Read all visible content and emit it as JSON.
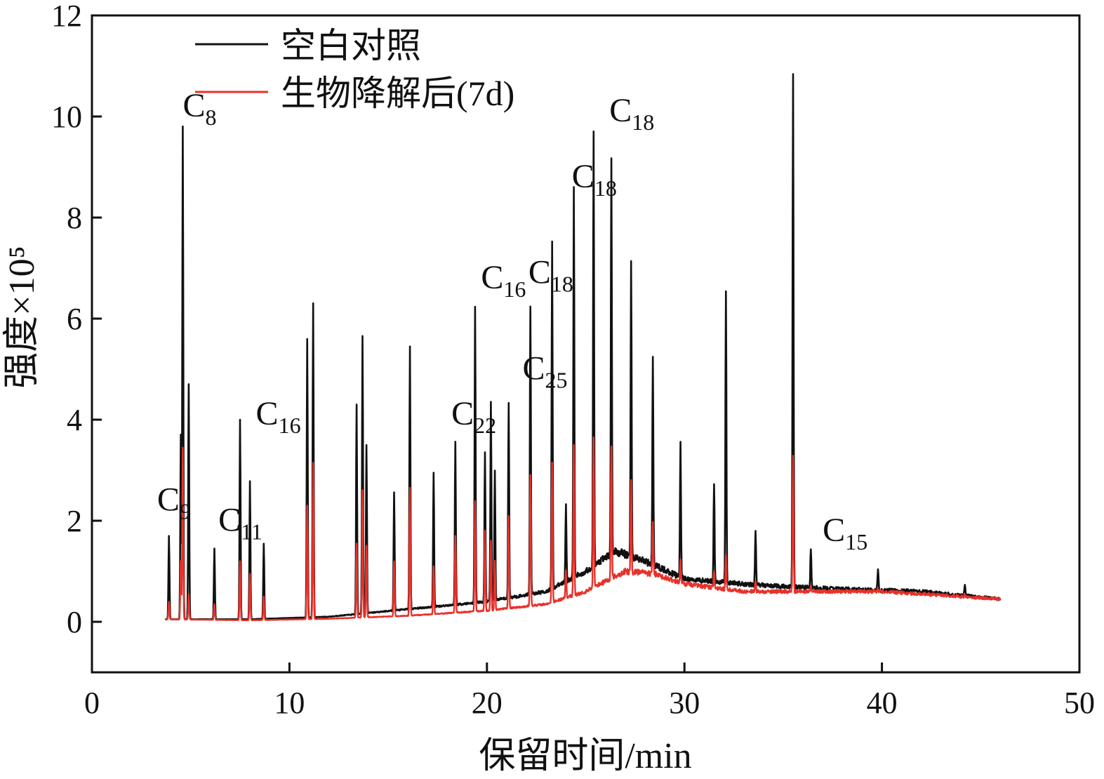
{
  "chart_data": {
    "type": "line",
    "xlabel": "保留时间/min",
    "ylabel": "强度×10⁵",
    "xlim": [
      0,
      50
    ],
    "ylim": [
      -1,
      12
    ],
    "xticks": [
      "0",
      "10",
      "20",
      "30",
      "40",
      "50"
    ],
    "yticks": [
      "0",
      "2",
      "4",
      "6",
      "8",
      "10",
      "12"
    ],
    "legend_position": "top-left",
    "grid": false,
    "series": [
      {
        "name": "空白对照",
        "color": "#111111",
        "baseline": [
          [
            3.7,
            0.05
          ],
          [
            8,
            0.05
          ],
          [
            12,
            0.1
          ],
          [
            16,
            0.25
          ],
          [
            20,
            0.4
          ],
          [
            23,
            0.6
          ],
          [
            25,
            1.0
          ],
          [
            26.5,
            1.4
          ],
          [
            28,
            1.2
          ],
          [
            30,
            0.85
          ],
          [
            33,
            0.75
          ],
          [
            35,
            0.7
          ],
          [
            38,
            0.65
          ],
          [
            42,
            0.6
          ],
          [
            46,
            0.45
          ]
        ],
        "peaks": [
          [
            3.9,
            1.7
          ],
          [
            4.5,
            3.7
          ],
          [
            4.6,
            9.8
          ],
          [
            4.9,
            4.7
          ],
          [
            6.2,
            1.45
          ],
          [
            7.5,
            4.0
          ],
          [
            8.0,
            2.78
          ],
          [
            8.7,
            1.55
          ],
          [
            10.9,
            5.6
          ],
          [
            11.2,
            6.3
          ],
          [
            13.4,
            4.3
          ],
          [
            13.7,
            5.65
          ],
          [
            13.9,
            3.5
          ],
          [
            15.3,
            2.55
          ],
          [
            16.1,
            5.45
          ],
          [
            17.3,
            2.95
          ],
          [
            18.4,
            3.55
          ],
          [
            19.4,
            6.25
          ],
          [
            19.9,
            3.35
          ],
          [
            20.2,
            4.35
          ],
          [
            20.4,
            3.0
          ],
          [
            21.1,
            4.35
          ],
          [
            22.2,
            6.25
          ],
          [
            23.3,
            7.5
          ],
          [
            24.0,
            2.35
          ],
          [
            24.4,
            8.6
          ],
          [
            25.4,
            9.65
          ],
          [
            26.3,
            9.2
          ],
          [
            27.3,
            7.2
          ],
          [
            28.4,
            5.3
          ],
          [
            29.8,
            3.55
          ],
          [
            31.5,
            2.75
          ],
          [
            32.1,
            6.5
          ],
          [
            33.6,
            1.8
          ],
          [
            35.5,
            10.8
          ],
          [
            36.4,
            1.45
          ],
          [
            39.8,
            1.05
          ],
          [
            44.2,
            0.75
          ]
        ]
      },
      {
        "name": "生物降解后(7d)",
        "color": "#e8312a",
        "baseline": [
          [
            3.7,
            0.05
          ],
          [
            8,
            0.03
          ],
          [
            12,
            0.06
          ],
          [
            16,
            0.12
          ],
          [
            20,
            0.22
          ],
          [
            23,
            0.35
          ],
          [
            25,
            0.6
          ],
          [
            27,
            1.0
          ],
          [
            28.5,
            0.95
          ],
          [
            30,
            0.75
          ],
          [
            33,
            0.6
          ],
          [
            35,
            0.6
          ],
          [
            40,
            0.6
          ],
          [
            46,
            0.45
          ]
        ],
        "peaks": [
          [
            3.9,
            0.4
          ],
          [
            4.5,
            1.2
          ],
          [
            4.6,
            3.45
          ],
          [
            4.9,
            0.55
          ],
          [
            6.2,
            0.35
          ],
          [
            7.5,
            1.2
          ],
          [
            8.0,
            0.95
          ],
          [
            8.7,
            0.5
          ],
          [
            10.9,
            2.3
          ],
          [
            11.2,
            3.15
          ],
          [
            13.4,
            1.55
          ],
          [
            13.7,
            2.6
          ],
          [
            13.9,
            1.5
          ],
          [
            15.3,
            1.2
          ],
          [
            16.1,
            2.65
          ],
          [
            17.3,
            1.1
          ],
          [
            18.4,
            1.7
          ],
          [
            19.4,
            2.4
          ],
          [
            19.9,
            1.8
          ],
          [
            20.2,
            1.6
          ],
          [
            20.4,
            1.2
          ],
          [
            21.1,
            2.1
          ],
          [
            22.2,
            2.9
          ],
          [
            23.3,
            3.15
          ],
          [
            24.0,
            1.0
          ],
          [
            24.4,
            3.5
          ],
          [
            25.4,
            3.65
          ],
          [
            26.3,
            3.5
          ],
          [
            27.3,
            2.75
          ],
          [
            28.4,
            2.0
          ],
          [
            29.8,
            1.2
          ],
          [
            31.5,
            1.0
          ],
          [
            32.1,
            1.3
          ],
          [
            33.6,
            0.8
          ],
          [
            35.5,
            3.3
          ],
          [
            36.4,
            0.7
          ],
          [
            39.8,
            0.65
          ],
          [
            44.2,
            0.55
          ]
        ]
      }
    ],
    "annotations": [
      {
        "base": "C",
        "sub": "8",
        "x": 4.6,
        "y": 10.0
      },
      {
        "base": "C",
        "sub": "9",
        "x": 3.3,
        "y": 2.2
      },
      {
        "base": "C",
        "sub": "11",
        "x": 6.4,
        "y": 1.8
      },
      {
        "base": "C",
        "sub": "16",
        "x": 8.3,
        "y": 3.9
      },
      {
        "base": "C",
        "sub": "22",
        "x": 18.2,
        "y": 3.9
      },
      {
        "base": "C",
        "sub": "16",
        "x": 19.7,
        "y": 6.6
      },
      {
        "base": "C",
        "sub": "18",
        "x": 22.1,
        "y": 6.7
      },
      {
        "base": "C",
        "sub": "25",
        "x": 21.8,
        "y": 4.8
      },
      {
        "base": "C",
        "sub": "18",
        "x": 24.3,
        "y": 8.6
      },
      {
        "base": "C",
        "sub": "18",
        "x": 26.2,
        "y": 9.9
      },
      {
        "base": "C",
        "sub": "15",
        "x": 37.0,
        "y": 1.6
      }
    ]
  }
}
